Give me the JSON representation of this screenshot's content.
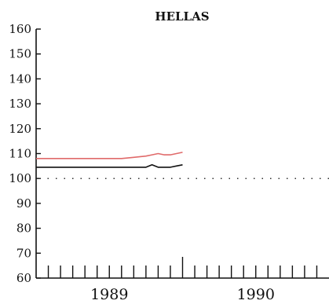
{
  "chart_data": {
    "type": "line",
    "title": "HELLAS",
    "xlabel": "",
    "ylabel": "",
    "ylim": [
      60,
      160
    ],
    "yticks": [
      60,
      70,
      80,
      90,
      100,
      110,
      120,
      130,
      140,
      150,
      160
    ],
    "xlim": [
      0,
      24
    ],
    "year_labels": [
      {
        "label": "1989",
        "x": 6
      },
      {
        "label": "1990",
        "x": 18
      }
    ],
    "reference_line": {
      "value": 100,
      "style": "dotted"
    },
    "grid": false,
    "legend": "none",
    "x": [
      0,
      1,
      2,
      3,
      4,
      5,
      6,
      7,
      8,
      9,
      9.5,
      10,
      10.5,
      11,
      11.5,
      12
    ],
    "series": [
      {
        "color": "#e06a6a",
        "values": [
          108,
          108,
          108,
          108,
          108,
          108,
          108,
          108,
          108.5,
          109,
          109.5,
          110,
          109.5,
          109.5,
          110,
          110.5
        ]
      },
      {
        "color": "#111111",
        "values": [
          104.5,
          104.5,
          104.5,
          104.5,
          104.5,
          104.5,
          104.5,
          104.5,
          104.5,
          104.5,
          105.5,
          104.5,
          104.5,
          104.5,
          105,
          105.5
        ]
      }
    ]
  }
}
